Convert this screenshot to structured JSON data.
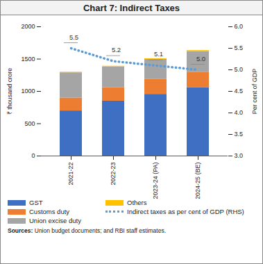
{
  "chart_data": {
    "type": "bar",
    "title": "Chart 7: Indirect Taxes",
    "stacked": true,
    "grid": false,
    "legend": "bottom",
    "categories": [
      "2021-22",
      "2022-23",
      "2023-24 (PA)",
      "2024-25 (BE)"
    ],
    "series": [
      {
        "name": "GST",
        "type": "bar",
        "color": "#3f6fc2",
        "values": [
          698,
          850,
          955,
          1060
        ]
      },
      {
        "name": "Customs duty",
        "type": "bar",
        "color": "#ed7d31",
        "values": [
          200,
          210,
          235,
          238
        ]
      },
      {
        "name": "Union excise duty",
        "type": "bar",
        "color": "#a5a5a5",
        "values": [
          390,
          320,
          305,
          320
        ]
      },
      {
        "name": "Others",
        "type": "bar",
        "color": "#ffc000",
        "values": [
          10,
          10,
          12,
          15
        ]
      },
      {
        "name": "Indirect taxes as per cent of GDP (RHS)",
        "type": "line",
        "axis": "y2",
        "color": "#5b9bd5",
        "line_style": "dotted",
        "data_labels": true,
        "values": [
          5.5,
          5.2,
          5.1,
          5.0
        ],
        "value_labels": [
          "5.5",
          "5.2",
          "5.1",
          "5.0"
        ]
      }
    ],
    "ylabel": "₹ thousand crore",
    "ylim": [
      0,
      2000
    ],
    "yticks": [
      0,
      500,
      1000,
      1500,
      2000
    ],
    "y2label": "Per cent of GDP",
    "y2lim": [
      3,
      6
    ],
    "y2ticks": [
      {
        "value": 3,
        "label": "3.0"
      },
      {
        "value": 3.5,
        "label": "3.5"
      },
      {
        "value": 4,
        "label": "4.0"
      },
      {
        "value": 4.5,
        "label": "4.5"
      },
      {
        "value": 5,
        "label": "5.0"
      },
      {
        "value": 5.5,
        "label": "5.5"
      },
      {
        "value": 6,
        "label": "6.0"
      }
    ],
    "source": "Sources: Union budget documents; and RBI staff estimates."
  }
}
